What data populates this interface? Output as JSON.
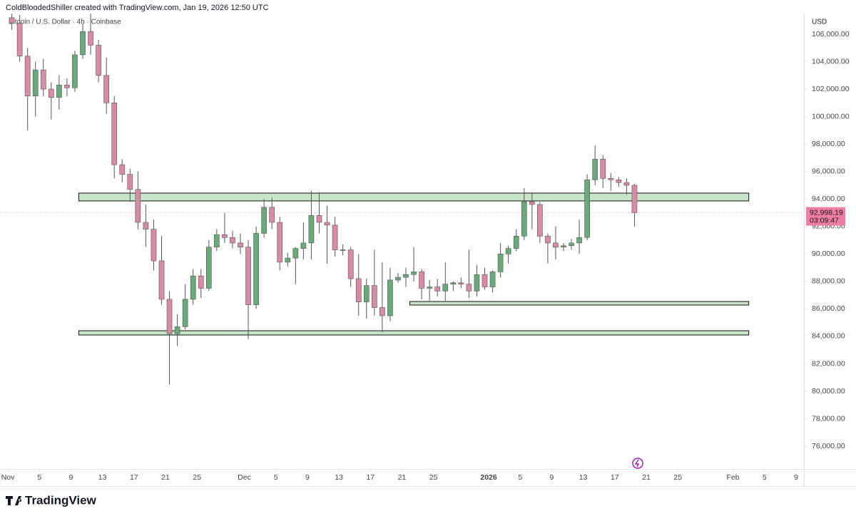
{
  "header": {
    "credit": "ColdBloodedShiller created with TradingView.com, Jan 19, 2026 12:50 UTC",
    "symbol": "Bitcoin / U.S. Dollar · 4h · Coinbase",
    "currency": "USD",
    "logo": "TradingView"
  },
  "chart_data": {
    "type": "candlestick",
    "x": [
      "2025-11-01",
      "2025-11-02",
      "2025-11-03",
      "2025-11-04",
      "2025-11-05",
      "2025-11-06",
      "2025-11-07",
      "2025-11-08",
      "2025-11-09",
      "2025-11-10",
      "2025-11-11",
      "2025-11-12",
      "2025-11-13",
      "2025-11-14",
      "2025-11-15",
      "2025-11-16",
      "2025-11-17",
      "2025-11-18",
      "2025-11-19",
      "2025-11-20",
      "2025-11-21",
      "2025-11-22",
      "2025-11-23",
      "2025-11-24",
      "2025-11-25",
      "2025-11-26",
      "2025-11-27",
      "2025-11-28",
      "2025-11-29",
      "2025-11-30",
      "2025-12-01",
      "2025-12-02",
      "2025-12-03",
      "2025-12-04",
      "2025-12-05",
      "2025-12-06",
      "2025-12-07",
      "2025-12-08",
      "2025-12-09",
      "2025-12-10",
      "2025-12-11",
      "2025-12-12",
      "2025-12-13",
      "2025-12-14",
      "2025-12-15",
      "2025-12-16",
      "2025-12-17",
      "2025-12-18",
      "2025-12-19",
      "2025-12-20",
      "2025-12-21",
      "2025-12-22",
      "2025-12-23",
      "2025-12-24",
      "2025-12-25",
      "2025-12-26",
      "2025-12-27",
      "2025-12-28",
      "2025-12-29",
      "2025-12-30",
      "2025-12-31",
      "2026-01-01",
      "2026-01-02",
      "2026-01-03",
      "2026-01-04",
      "2026-01-05",
      "2026-01-06",
      "2026-01-07",
      "2026-01-08",
      "2026-01-09",
      "2026-01-10",
      "2026-01-11",
      "2026-01-12",
      "2026-01-13",
      "2026-01-14",
      "2026-01-15",
      "2026-01-16",
      "2026-01-17",
      "2026-01-18",
      "2026-01-19"
    ],
    "open": [
      107200,
      106800,
      104400,
      101500,
      103400,
      102000,
      101400,
      102300,
      102100,
      104500,
      106200,
      105200,
      103000,
      101000,
      96500,
      95800,
      94700,
      92300,
      91800,
      89500,
      86700,
      84200,
      84700,
      86700,
      88400,
      87500,
      90500,
      91400,
      91200,
      90800,
      90500,
      86300,
      91500,
      93400,
      92300,
      89400,
      89700,
      90400,
      90800,
      92800,
      92300,
      92100,
      90300,
      90300,
      88200,
      86500,
      87700,
      86100,
      85500,
      88100,
      88300,
      88500,
      88700,
      87500,
      87600,
      87300,
      87800,
      87900,
      87800,
      87300,
      88500,
      87600,
      88700,
      90000,
      90400,
      91300,
      93800,
      93600,
      91300,
      90800,
      90500,
      90600,
      90800,
      91200,
      95400,
      96900,
      95500,
      95400,
      95200,
      95000
    ],
    "high": [
      107500,
      107400,
      105000,
      104000,
      104200,
      102500,
      103000,
      102800,
      104800,
      106800,
      107500,
      105600,
      104300,
      101500,
      96900,
      96200,
      96000,
      93600,
      92500,
      91300,
      87300,
      85600,
      87800,
      88900,
      88900,
      91000,
      91800,
      93000,
      91700,
      91500,
      91000,
      92000,
      94000,
      94100,
      92700,
      90100,
      90500,
      92300,
      94600,
      94500,
      93500,
      92700,
      90700,
      90500,
      90000,
      88200,
      90300,
      89400,
      89000,
      88600,
      89000,
      90500,
      88900,
      88100,
      88200,
      89400,
      88000,
      88300,
      90300,
      89200,
      89000,
      88800,
      90800,
      90600,
      91800,
      94800,
      94500,
      93800,
      91500,
      92000,
      90800,
      91100,
      92500,
      95800,
      97900,
      97200,
      95900,
      95600,
      95500,
      95100
    ],
    "low": [
      106300,
      104000,
      99000,
      100000,
      101500,
      99800,
      100500,
      101500,
      101800,
      104200,
      104500,
      102500,
      100200,
      95500,
      95200,
      93800,
      91800,
      90500,
      88800,
      86300,
      80500,
      83300,
      84500,
      86300,
      86800,
      87300,
      90200,
      90800,
      90400,
      90000,
      83800,
      86000,
      91200,
      91800,
      88800,
      89100,
      87800,
      89600,
      89600,
      91500,
      89300,
      89800,
      89900,
      87600,
      85500,
      85300,
      85500,
      84300,
      85100,
      87900,
      87600,
      88000,
      86700,
      86600,
      86900,
      86600,
      87300,
      87500,
      86800,
      86900,
      87400,
      87200,
      88300,
      89300,
      90200,
      91000,
      91800,
      90800,
      89300,
      89600,
      90200,
      90300,
      90000,
      91000,
      95000,
      94800,
      94600,
      94900,
      94300,
      92000
    ],
    "close": [
      106800,
      104400,
      101500,
      103400,
      102000,
      101400,
      102300,
      102100,
      104500,
      106200,
      105200,
      103000,
      101000,
      96500,
      95800,
      94700,
      92300,
      91800,
      89500,
      86700,
      84200,
      84700,
      86700,
      88400,
      87500,
      90500,
      91400,
      91200,
      90800,
      90500,
      86300,
      91500,
      93400,
      92300,
      89400,
      89700,
      90400,
      90800,
      92800,
      92300,
      92100,
      90300,
      90300,
      88200,
      86500,
      87700,
      86100,
      85500,
      88100,
      88300,
      88500,
      88700,
      87500,
      87600,
      87300,
      87800,
      87900,
      87800,
      87300,
      88500,
      87600,
      88700,
      90000,
      90400,
      91300,
      93800,
      93600,
      91300,
      90800,
      90500,
      90600,
      90800,
      91200,
      95400,
      96900,
      95500,
      95400,
      95200,
      95000,
      92998.19
    ],
    "up_color": "#6aa97a",
    "down_color": "#d88aa6",
    "wick_color": "#555555",
    "zones": [
      {
        "x": [
          "2025-11-10",
          "2026-02-03"
        ],
        "y": [
          93860,
          94430
        ],
        "color": "#c8e6c9"
      },
      {
        "x": [
          "2025-12-22",
          "2026-02-03"
        ],
        "y": [
          86280,
          86540
        ],
        "color": "#c8e6c9"
      },
      {
        "x": [
          "2025-11-10",
          "2026-02-03"
        ],
        "y": [
          84100,
          84410
        ],
        "color": "#c8e6c9"
      }
    ],
    "last_price": {
      "value": 92998.19,
      "label": "92,998.19",
      "countdown": "03:09:47",
      "color": "#f07ea3"
    },
    "xlim": [
      "2025-10-31",
      "2026-02-10"
    ],
    "ylim": [
      74345,
      107557
    ],
    "xticks": [
      {
        "value": "2025-11-01",
        "label": "Nov"
      },
      {
        "value": "2025-11-05",
        "label": "5"
      },
      {
        "value": "2025-11-09",
        "label": "9"
      },
      {
        "value": "2025-11-13",
        "label": "13"
      },
      {
        "value": "2025-11-17",
        "label": "17"
      },
      {
        "value": "2025-11-21",
        "label": "21"
      },
      {
        "value": "2025-11-25",
        "label": "25"
      },
      {
        "value": "2025-12-01",
        "label": "Dec"
      },
      {
        "value": "2025-12-05",
        "label": "5"
      },
      {
        "value": "2025-12-09",
        "label": "9"
      },
      {
        "value": "2025-12-13",
        "label": "13"
      },
      {
        "value": "2025-12-17",
        "label": "17"
      },
      {
        "value": "2025-12-21",
        "label": "21"
      },
      {
        "value": "2025-12-25",
        "label": "25"
      },
      {
        "value": "2026-01-01",
        "label": "2026"
      },
      {
        "value": "2026-01-05",
        "label": "5"
      },
      {
        "value": "2026-01-09",
        "label": "9"
      },
      {
        "value": "2026-01-13",
        "label": "13"
      },
      {
        "value": "2026-01-17",
        "label": "17"
      },
      {
        "value": "2026-01-21",
        "label": "21"
      },
      {
        "value": "2026-01-25",
        "label": "25"
      },
      {
        "value": "2026-02-01",
        "label": "Feb"
      },
      {
        "value": "2026-02-05",
        "label": "5"
      },
      {
        "value": "2026-02-09",
        "label": "9"
      }
    ],
    "yticks": [
      {
        "value": 76000,
        "label": "76,000.00"
      },
      {
        "value": 78000,
        "label": "78,000.00"
      },
      {
        "value": 80000,
        "label": "80,000.00"
      },
      {
        "value": 82000,
        "label": "82,000.00"
      },
      {
        "value": 84000,
        "label": "84,000.00"
      },
      {
        "value": 86000,
        "label": "86,000.00"
      },
      {
        "value": 88000,
        "label": "88,000.00"
      },
      {
        "value": 90000,
        "label": "90,000.00"
      },
      {
        "value": 92000,
        "label": "92,000.00"
      },
      {
        "value": 94000,
        "label": "94,000.00"
      },
      {
        "value": 96000,
        "label": "96,000.00"
      },
      {
        "value": 98000,
        "label": "98,000.00"
      },
      {
        "value": 100000,
        "label": "100,000.00"
      },
      {
        "value": 102000,
        "label": "102,000.00"
      },
      {
        "value": 104000,
        "label": "104,000.00"
      },
      {
        "value": 106000,
        "label": "106,000.00"
      }
    ],
    "grid": false
  }
}
